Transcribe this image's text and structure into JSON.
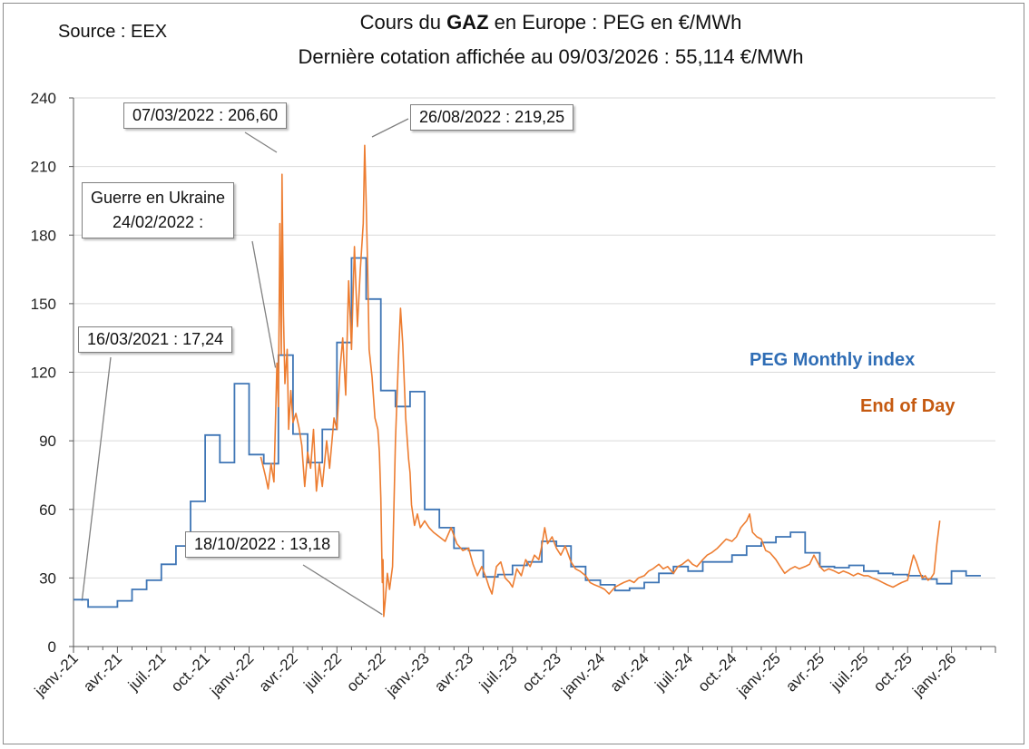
{
  "source": "Source : EEX",
  "title": {
    "prefix": "Cours du ",
    "bold": "GAZ",
    "suffix": " en Europe : PEG en €/MWh",
    "subtitle": "Dernière cotation affichée au 09/03/2026 : 55,114 €/MWh"
  },
  "annotations": {
    "peak1": "07/03/2022 : 206,60",
    "peak2": "26/08/2022 : 219,25",
    "war_line1": "Guerre en Ukraine",
    "war_line2": "24/02/2022 :",
    "low2021": "16/03/2021 : 17,24",
    "low2022": "18/10/2022 : 13,18"
  },
  "legend": {
    "monthly": "PEG Monthly index",
    "eod": "End of Day"
  },
  "colors": {
    "monthly": "#3e75b5",
    "eod": "#ed7d31",
    "grid": "#d9d9d9",
    "axis": "#595959",
    "monthly_label": "#2f6db5",
    "eod_label": "#c55a11"
  },
  "chart_data": {
    "type": "line",
    "ylim": [
      0,
      240
    ],
    "yticks": [
      "0",
      "30",
      "60",
      "90",
      "120",
      "150",
      "180",
      "210",
      "240"
    ],
    "x_range_months": [
      0,
      63
    ],
    "xticks": [
      "janv.-21",
      "avr.-21",
      "juil.-21",
      "oct.-21",
      "janv.-22",
      "avr.-22",
      "juil.-22",
      "oct.-22",
      "janv.-23",
      "avr.-23",
      "juil.-23",
      "oct.-23",
      "janv.-24",
      "avr.-24",
      "juil.-24",
      "oct.-24",
      "janv.-25",
      "avr.-25",
      "juil.-25",
      "oct.-25",
      "janv.-26"
    ],
    "series": [
      {
        "name": "PEG Monthly index",
        "type": "step",
        "start_month": 0,
        "values": [
          20.5,
          17.3,
          17.3,
          20.0,
          25.0,
          29.0,
          36.0,
          44.0,
          63.5,
          92.5,
          80.5,
          115.0,
          84.0,
          80.0,
          127.5,
          93.0,
          80.5,
          95.0,
          133.0,
          170.0,
          152.0,
          112.0,
          105.0,
          111.5,
          60.0,
          52.0,
          43.0,
          42.0,
          30.5,
          31.5,
          35.5,
          37.0,
          46.0,
          44.0,
          35.0,
          29.0,
          27.0,
          24.5,
          25.5,
          28.0,
          32.0,
          35.0,
          33.0,
          37.0,
          37.0,
          40.0,
          44.0,
          45.5,
          48.0,
          50.0,
          41.0,
          35.0,
          34.5,
          35.5,
          33.0,
          32.0,
          31.5,
          31.0,
          29.5,
          27.5,
          33.0,
          31.0
        ]
      },
      {
        "name": "End of Day",
        "type": "line",
        "points": [
          [
            12.8,
            83
          ],
          [
            13.1,
            75
          ],
          [
            13.3,
            69
          ],
          [
            13.5,
            80
          ],
          [
            13.7,
            72
          ],
          [
            13.9,
            124
          ],
          [
            14.0,
            105
          ],
          [
            14.1,
            185
          ],
          [
            14.2,
            128
          ],
          [
            14.25,
            206.6
          ],
          [
            14.35,
            145
          ],
          [
            14.45,
            115
          ],
          [
            14.6,
            130
          ],
          [
            14.7,
            95
          ],
          [
            14.85,
            112
          ],
          [
            15.0,
            98
          ],
          [
            15.2,
            102
          ],
          [
            15.4,
            96
          ],
          [
            15.6,
            88
          ],
          [
            15.8,
            70
          ],
          [
            16.0,
            85
          ],
          [
            16.2,
            78
          ],
          [
            16.4,
            95
          ],
          [
            16.6,
            68
          ],
          [
            16.8,
            80
          ],
          [
            17.0,
            70
          ],
          [
            17.3,
            90
          ],
          [
            17.5,
            78
          ],
          [
            17.8,
            100
          ],
          [
            18.0,
            95
          ],
          [
            18.2,
            120
          ],
          [
            18.4,
            135
          ],
          [
            18.6,
            110
          ],
          [
            18.8,
            160
          ],
          [
            19.0,
            130
          ],
          [
            19.2,
            175
          ],
          [
            19.4,
            140
          ],
          [
            19.6,
            165
          ],
          [
            19.8,
            185
          ],
          [
            19.9,
            219.25
          ],
          [
            20.0,
            195
          ],
          [
            20.1,
            165
          ],
          [
            20.2,
            130
          ],
          [
            20.4,
            118
          ],
          [
            20.6,
            100
          ],
          [
            20.8,
            95
          ],
          [
            20.9,
            85
          ],
          [
            21.0,
            65
          ],
          [
            21.1,
            28
          ],
          [
            21.15,
            38
          ],
          [
            21.2,
            13.18
          ],
          [
            21.3,
            20
          ],
          [
            21.45,
            32
          ],
          [
            21.6,
            25
          ],
          [
            21.8,
            35
          ],
          [
            22.0,
            90
          ],
          [
            22.2,
            125
          ],
          [
            22.35,
            148
          ],
          [
            22.5,
            132
          ],
          [
            22.7,
            100
          ],
          [
            22.9,
            82
          ],
          [
            23.0,
            76
          ],
          [
            23.1,
            62
          ],
          [
            23.3,
            53
          ],
          [
            23.5,
            58
          ],
          [
            23.7,
            52
          ],
          [
            24.0,
            55
          ],
          [
            24.3,
            52
          ],
          [
            24.6,
            50
          ],
          [
            25.0,
            48
          ],
          [
            25.4,
            46
          ],
          [
            25.8,
            52
          ],
          [
            26.2,
            45
          ],
          [
            26.6,
            42
          ],
          [
            27.0,
            43
          ],
          [
            27.3,
            36
          ],
          [
            27.6,
            31
          ],
          [
            27.9,
            35
          ],
          [
            28.2,
            30
          ],
          [
            28.4,
            26
          ],
          [
            28.6,
            23
          ],
          [
            28.9,
            35
          ],
          [
            29.2,
            37
          ],
          [
            29.5,
            30
          ],
          [
            29.8,
            28
          ],
          [
            30.0,
            26
          ],
          [
            30.3,
            34
          ],
          [
            30.6,
            31
          ],
          [
            30.9,
            38
          ],
          [
            31.2,
            35
          ],
          [
            31.5,
            40
          ],
          [
            31.8,
            38
          ],
          [
            32.0,
            44
          ],
          [
            32.2,
            52
          ],
          [
            32.4,
            45
          ],
          [
            32.7,
            48
          ],
          [
            33.0,
            43
          ],
          [
            33.3,
            40
          ],
          [
            33.6,
            44
          ],
          [
            34.0,
            37
          ],
          [
            34.3,
            34
          ],
          [
            34.6,
            33
          ],
          [
            35.0,
            31
          ],
          [
            35.3,
            28
          ],
          [
            35.6,
            27
          ],
          [
            36.0,
            26
          ],
          [
            36.3,
            25
          ],
          [
            36.6,
            23
          ],
          [
            37.0,
            26
          ],
          [
            37.3,
            27
          ],
          [
            37.6,
            28
          ],
          [
            38.0,
            29
          ],
          [
            38.3,
            28
          ],
          [
            38.6,
            30
          ],
          [
            39.0,
            31
          ],
          [
            39.3,
            33
          ],
          [
            39.6,
            34
          ],
          [
            40.0,
            36
          ],
          [
            40.3,
            34
          ],
          [
            40.6,
            35
          ],
          [
            41.0,
            32
          ],
          [
            41.3,
            35
          ],
          [
            41.6,
            36
          ],
          [
            42.0,
            38
          ],
          [
            42.3,
            36
          ],
          [
            42.6,
            35
          ],
          [
            43.0,
            38
          ],
          [
            43.3,
            40
          ],
          [
            43.6,
            41
          ],
          [
            44.0,
            43
          ],
          [
            44.3,
            45
          ],
          [
            44.6,
            47
          ],
          [
            45.0,
            46
          ],
          [
            45.3,
            48
          ],
          [
            45.6,
            52
          ],
          [
            46.0,
            55
          ],
          [
            46.2,
            58
          ],
          [
            46.4,
            50
          ],
          [
            46.7,
            48
          ],
          [
            47.0,
            47
          ],
          [
            47.3,
            42
          ],
          [
            47.6,
            41
          ],
          [
            48.0,
            38
          ],
          [
            48.3,
            35
          ],
          [
            48.6,
            32
          ],
          [
            49.0,
            34
          ],
          [
            49.3,
            35
          ],
          [
            49.6,
            34
          ],
          [
            50.0,
            35
          ],
          [
            50.3,
            36
          ],
          [
            50.6,
            40
          ],
          [
            51.0,
            35
          ],
          [
            51.3,
            33
          ],
          [
            51.6,
            34
          ],
          [
            52.0,
            33
          ],
          [
            52.3,
            32
          ],
          [
            52.6,
            33
          ],
          [
            53.0,
            32
          ],
          [
            53.3,
            31
          ],
          [
            53.6,
            32
          ],
          [
            54.0,
            31
          ],
          [
            54.3,
            31
          ],
          [
            54.6,
            30
          ],
          [
            55.0,
            29
          ],
          [
            55.3,
            28
          ],
          [
            55.6,
            27
          ],
          [
            56.0,
            26
          ],
          [
            56.3,
            27
          ],
          [
            56.6,
            28
          ],
          [
            57.0,
            29
          ],
          [
            57.2,
            35
          ],
          [
            57.4,
            40
          ],
          [
            57.6,
            37
          ],
          [
            57.8,
            33
          ],
          [
            58.0,
            30
          ],
          [
            58.2,
            31
          ],
          [
            58.4,
            29
          ],
          [
            58.6,
            30
          ],
          [
            58.8,
            32
          ],
          [
            59.0,
            45
          ],
          [
            59.2,
            55.1
          ]
        ]
      }
    ]
  }
}
